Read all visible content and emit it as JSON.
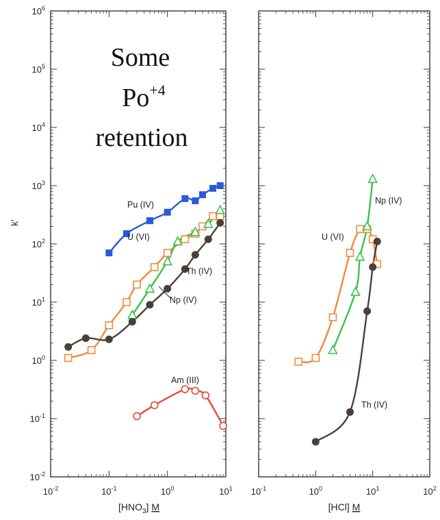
{
  "annotation": {
    "line1": "Some",
    "line2_base": "Po",
    "line2_sup": "+4",
    "line3": "retention"
  },
  "ylabel": "k'",
  "y_ticks": [
    {
      "base": "10",
      "exp": "-2"
    },
    {
      "base": "10",
      "exp": "-1"
    },
    {
      "base": "10",
      "exp": "0"
    },
    {
      "base": "10",
      "exp": "1"
    },
    {
      "base": "10",
      "exp": "2"
    },
    {
      "base": "10",
      "exp": "3"
    },
    {
      "base": "10",
      "exp": "4"
    },
    {
      "base": "10",
      "exp": "5"
    },
    {
      "base": "10",
      "exp": "6"
    }
  ],
  "panel_left": {
    "xlabel_pre": "[HNO",
    "xlabel_sub": "3",
    "xlabel_post": "] ",
    "xlabel_unit": "M",
    "x_ticks": [
      {
        "base": "10",
        "exp": "-2"
      },
      {
        "base": "10",
        "exp": "-1"
      },
      {
        "base": "10",
        "exp": "0"
      },
      {
        "base": "10",
        "exp": "1"
      }
    ]
  },
  "panel_right": {
    "xlabel_pre": "[HCl] ",
    "xlabel_unit": "M",
    "x_ticks": [
      {
        "base": "10",
        "exp": "-1"
      },
      {
        "base": "10",
        "exp": "0"
      },
      {
        "base": "10",
        "exp": "1"
      },
      {
        "base": "10",
        "exp": "2"
      }
    ]
  },
  "colors": {
    "pu": "#2a5bd7",
    "u": "#f08a3c",
    "np": "#3cc04c",
    "th": "#4a4038",
    "am": "#e04a3a",
    "frame": "#333333"
  },
  "chart_data": [
    {
      "type": "scatter",
      "panel": "left",
      "xlabel": "[HNO3] M",
      "ylabel": "k'",
      "xscale": "log",
      "yscale": "log",
      "xlim": [
        0.01,
        10
      ],
      "ylim": [
        0.01,
        1000000
      ],
      "series": [
        {
          "name": "Pu (IV)",
          "key": "pu",
          "marker": "filled-square",
          "x": [
            0.1,
            0.2,
            0.5,
            1,
            2,
            3,
            4,
            6,
            8
          ],
          "y": [
            70,
            150,
            250,
            350,
            600,
            550,
            700,
            900,
            1000
          ]
        },
        {
          "name": "U (VI)",
          "key": "u",
          "marker": "open-square",
          "x": [
            0.02,
            0.05,
            0.1,
            0.2,
            0.3,
            0.6,
            1,
            2,
            3,
            4,
            6,
            8
          ],
          "y": [
            1.1,
            1.5,
            4,
            10,
            20,
            40,
            70,
            120,
            150,
            200,
            300,
            300
          ]
        },
        {
          "name": "Np (IV)",
          "key": "np",
          "marker": "open-triangle",
          "x": [
            0.25,
            0.5,
            1,
            1.5,
            3,
            5,
            8
          ],
          "y": [
            6,
            17,
            50,
            110,
            160,
            220,
            380
          ]
        },
        {
          "name": "Th (IV)",
          "key": "th",
          "marker": "filled-circle",
          "x": [
            0.02,
            0.04,
            0.1,
            0.25,
            0.5,
            1,
            2,
            3,
            5,
            8
          ],
          "y": [
            1.7,
            2.4,
            2.3,
            4.6,
            9,
            17,
            37,
            65,
            120,
            230
          ]
        },
        {
          "name": "Am (III)",
          "key": "am",
          "marker": "open-circle",
          "x": [
            0.3,
            0.6,
            2,
            3,
            4.5,
            9
          ],
          "y": [
            0.11,
            0.17,
            0.32,
            0.3,
            0.25,
            0.075
          ]
        }
      ]
    },
    {
      "type": "scatter",
      "panel": "right",
      "xlabel": "[HCl] M",
      "ylabel": "k'",
      "xscale": "log",
      "yscale": "log",
      "xlim": [
        0.1,
        100
      ],
      "ylim": [
        0.01,
        1000000
      ],
      "series": [
        {
          "name": "U (VI)",
          "key": "u",
          "marker": "open-square",
          "x": [
            0.5,
            1,
            2,
            4,
            6,
            8,
            10,
            12
          ],
          "y": [
            0.95,
            1.1,
            5.5,
            70,
            180,
            180,
            120,
            45
          ]
        },
        {
          "name": "Np (IV)",
          "key": "np",
          "marker": "open-triangle",
          "x": [
            2,
            5,
            6,
            8,
            10
          ],
          "y": [
            1.5,
            15,
            60,
            200,
            1300
          ]
        },
        {
          "name": "Th (IV)",
          "key": "th",
          "marker": "filled-circle",
          "x": [
            1,
            4,
            8,
            10,
            12
          ],
          "y": [
            0.04,
            0.13,
            7,
            40,
            110
          ]
        }
      ]
    }
  ]
}
